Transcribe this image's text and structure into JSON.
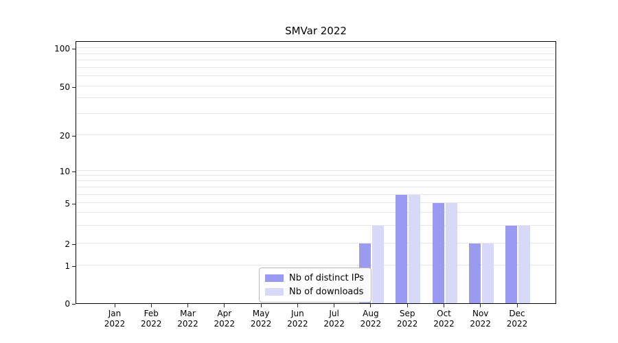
{
  "chart_data": {
    "type": "bar",
    "title": "SMVar 2022",
    "categories": [
      "Jan 2022",
      "Feb 2022",
      "Mar 2022",
      "Apr 2022",
      "May 2022",
      "Jun 2022",
      "Jul 2022",
      "Aug 2022",
      "Sep 2022",
      "Oct 2022",
      "Nov 2022",
      "Dec 2022"
    ],
    "series": [
      {
        "name": "Nb of distinct IPs",
        "color": "#9a9af0",
        "values": [
          0,
          0,
          0,
          0,
          0,
          0,
          0,
          2,
          6,
          5,
          2,
          3
        ]
      },
      {
        "name": "Nb of downloads",
        "color": "#d8d8f8",
        "values": [
          0,
          0,
          0,
          0,
          0,
          0,
          0,
          3,
          6,
          5,
          2,
          3
        ]
      }
    ],
    "xlabel": "",
    "ylabel": "",
    "yscale": "log-like with linear zero segment",
    "ytick_labels": [
      "0",
      "1",
      "2",
      "5",
      "10",
      "20",
      "50",
      "100"
    ],
    "ytick_values": [
      0,
      1,
      2,
      5,
      10,
      20,
      50,
      100
    ],
    "ylim": [
      0,
      110
    ],
    "gridline_values": [
      1,
      2,
      3,
      4,
      5,
      6,
      7,
      8,
      9,
      10,
      20,
      30,
      40,
      50,
      60,
      70,
      80,
      90,
      100
    ],
    "grid_color": "#e6e6e6",
    "legend": {
      "entries": [
        "Nb of distinct IPs",
        "Nb of downloads"
      ],
      "position": "lower center inside plot"
    }
  }
}
